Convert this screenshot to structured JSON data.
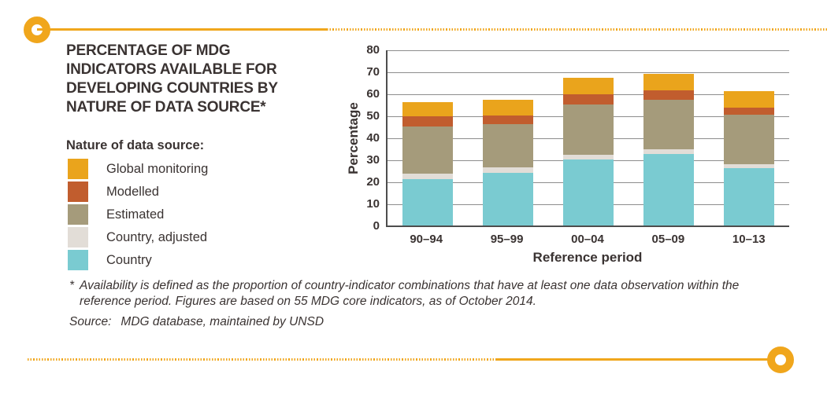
{
  "header": {
    "title_lines": [
      "PERCENTAGE OF MDG",
      "INDICATORS AVAILABLE FOR",
      "DEVELOPING COUNTRIES BY",
      "NATURE OF DATA SOURCE*"
    ]
  },
  "legend": {
    "heading": "Nature of data source:",
    "items": [
      {
        "label": "Global monitoring",
        "color": "#EAA41C"
      },
      {
        "label": "Modelled",
        "color": "#C15D2E"
      },
      {
        "label": "Estimated",
        "color": "#A59B7B"
      },
      {
        "label": "Country, adjusted",
        "color": "#E2DDD7"
      },
      {
        "label": "Country",
        "color": "#7ACBD1"
      }
    ]
  },
  "chart_data": {
    "type": "bar",
    "subtype": "stacked",
    "categories": [
      "90–94",
      "95–99",
      "00–04",
      "05–09",
      "10–13"
    ],
    "series": [
      {
        "name": "Country",
        "color": "#7ACBD1",
        "values": [
          21,
          24,
          30,
          32.5,
          26
        ]
      },
      {
        "name": "Country, adjusted",
        "color": "#E2DDD7",
        "values": [
          2.5,
          2.5,
          2,
          2,
          2
        ]
      },
      {
        "name": "Estimated",
        "color": "#A59B7B",
        "values": [
          21.5,
          19.5,
          23,
          22.5,
          22.5
        ]
      },
      {
        "name": "Modelled",
        "color": "#C15D2E",
        "values": [
          4.5,
          4,
          4.5,
          4.5,
          3
        ]
      },
      {
        "name": "Global monitoring",
        "color": "#EAA41C",
        "values": [
          6.5,
          7,
          7.5,
          7.5,
          7.5
        ]
      }
    ],
    "stack_totals": [
      56,
      57,
      67,
      69,
      61
    ],
    "title": "",
    "xlabel": "Reference period",
    "ylabel": "Percentage",
    "ylim": [
      0,
      80
    ],
    "yticks": [
      0,
      10,
      20,
      30,
      40,
      50,
      60,
      70,
      80
    ],
    "grid": "horizontal",
    "legend_position": "left"
  },
  "footer": {
    "footnote_marker": "*",
    "footnote": "Availability is defined as the proportion of country-indicator combinations that have at least one data observation within the reference period. Figures are based on 55 MDG core indicators, as of October 2014.",
    "source_label": "Source:",
    "source_text": "MDG database, maintained by UNSD"
  },
  "colors": {
    "accent": "#F0A61C",
    "text": "#3A3332",
    "grid_line": "#8C8C8C",
    "axis_line": "#4D4D4D"
  }
}
